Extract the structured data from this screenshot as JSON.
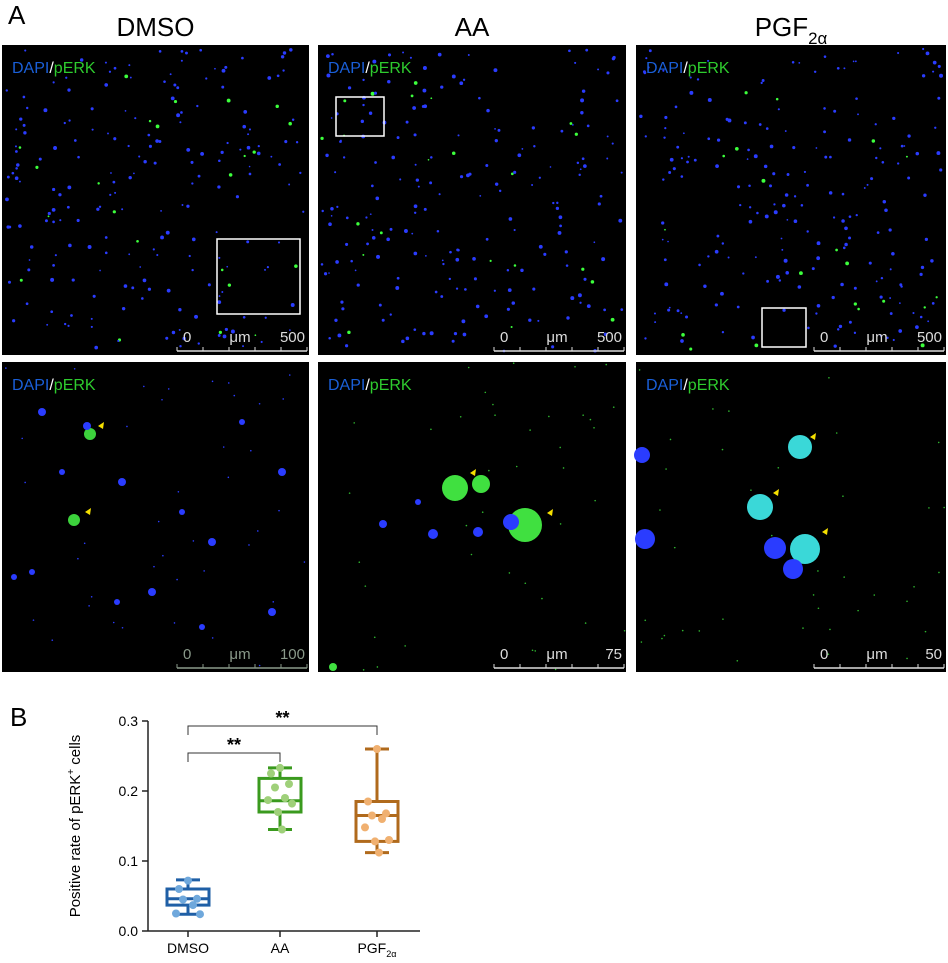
{
  "panel_a": {
    "label": "A",
    "columns": [
      {
        "text": "DMSO"
      },
      {
        "text": "AA"
      },
      {
        "text": "PGF",
        "sub": "2α"
      }
    ],
    "images": [
      [
        {
          "channels": [
            "DAPI",
            "pERK"
          ],
          "separator": "/",
          "scale": [
            "0",
            "μm",
            "500"
          ]
        },
        {
          "channels": [
            "DAPI",
            "pERK"
          ],
          "separator": "/",
          "scale": [
            "0",
            "μm",
            "500"
          ]
        },
        {
          "channels": [
            "DAPI",
            "pERK"
          ],
          "separator": "/",
          "scale": [
            "0",
            "μm",
            "500"
          ]
        }
      ],
      [
        {
          "channels": [
            "DAPI",
            "pERK"
          ],
          "separator": "/",
          "scale": [
            "0",
            "μm",
            "100"
          ]
        },
        {
          "channels": [
            "DAPI",
            "pERK"
          ],
          "separator": "/",
          "scale": [
            "0",
            "μm",
            "75"
          ]
        },
        {
          "channels": [
            "DAPI",
            "pERK"
          ],
          "separator": "/",
          "scale": [
            "0",
            "μm",
            "50"
          ]
        }
      ]
    ]
  },
  "panel_b": {
    "label": "B",
    "chart_data": {
      "type": "box",
      "ylabel": {
        "text": "Positive rate of pERK",
        "sup": "+",
        "tail": " cells"
      },
      "categories": [
        {
          "text": "DMSO"
        },
        {
          "text": "AA"
        },
        {
          "text": "PGF",
          "sub": "2α"
        }
      ],
      "ylim": [
        0,
        0.3
      ],
      "yticks": [
        {
          "value": 0,
          "label": "0.0"
        },
        0.1,
        0.2,
        0.3
      ],
      "boxes": [
        {
          "min": 0.024,
          "q1": 0.037,
          "median": 0.046,
          "q3": 0.06,
          "max": 0.073,
          "color": "#1f5fa6",
          "point_color": "#6fa8dc",
          "points": [
            0.072,
            0.06,
            0.046,
            0.045,
            0.037,
            0.025,
            0.024
          ]
        },
        {
          "min": 0.145,
          "q1": 0.17,
          "median": 0.186,
          "q3": 0.218,
          "max": 0.233,
          "color": "#3a9a1e",
          "point_color": "#9fd07a",
          "points": [
            0.233,
            0.225,
            0.21,
            0.205,
            0.19,
            0.187,
            0.182,
            0.17,
            0.145
          ]
        },
        {
          "min": 0.112,
          "q1": 0.128,
          "median": 0.165,
          "q3": 0.185,
          "max": 0.26,
          "color": "#b06a1c",
          "point_color": "#f0b070",
          "points": [
            0.26,
            0.185,
            0.168,
            0.165,
            0.16,
            0.148,
            0.13,
            0.128,
            0.112
          ]
        }
      ],
      "annotations": [
        "**",
        "**"
      ]
    }
  }
}
